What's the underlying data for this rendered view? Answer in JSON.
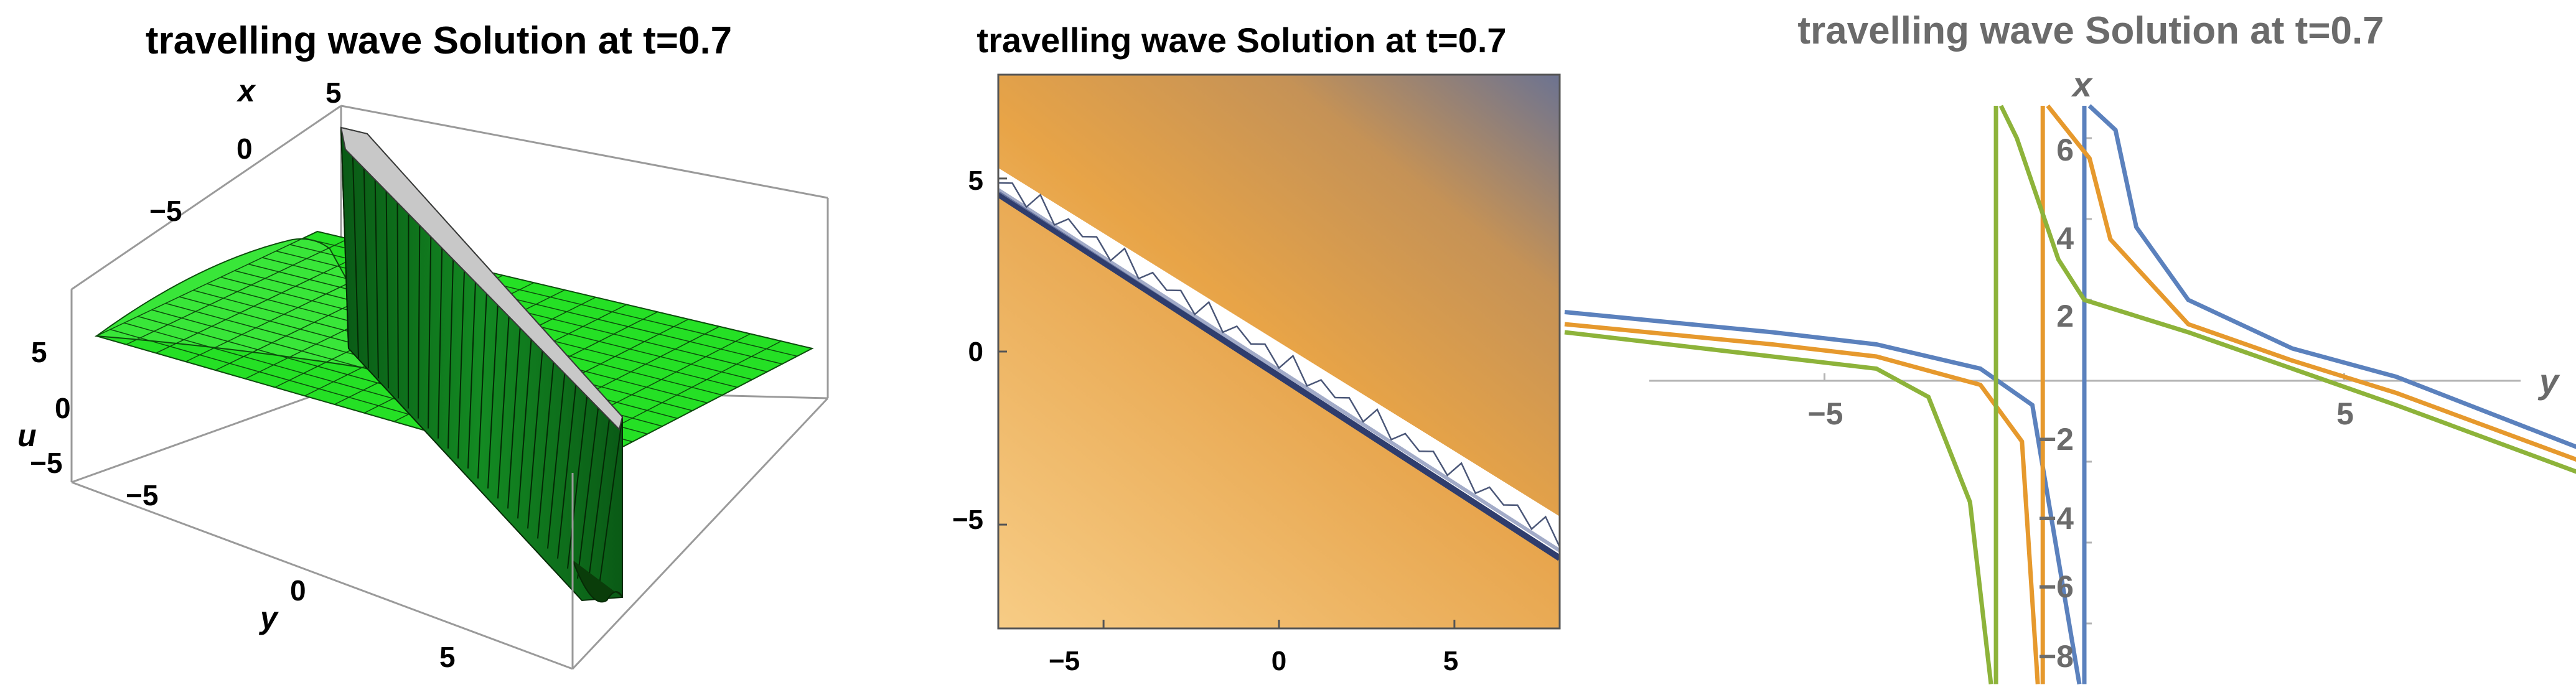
{
  "chart_data": [
    {
      "type": "surface3d",
      "title": "travelling wave Solution at t=0.7",
      "axis_labels": {
        "x": "x",
        "y": "y",
        "z": "u"
      },
      "x_ticks": [
        "5",
        "0",
        "−5"
      ],
      "y_ticks": [
        "−5",
        "0",
        "5"
      ],
      "z_ticks": [
        "5",
        "0",
        "−5"
      ],
      "x_range": [
        -8,
        8
      ],
      "y_range": [
        -8,
        8
      ],
      "z_range": [
        -6,
        8
      ],
      "surface_color": "#1fe01f",
      "wall_color": "#0e7a1e",
      "description_values": {
        "plateau_level": 4,
        "front_line": "x + y ≈ 0"
      }
    },
    {
      "type": "heatmap",
      "title": "travelling wave Solution at t=0.7",
      "x_ticks": [
        "−5",
        "0",
        "5"
      ],
      "y_ticks": [
        "5",
        "0",
        "−5"
      ],
      "xlim": [
        -8,
        8
      ],
      "ylim": [
        -8,
        8
      ],
      "colors": {
        "light": "#f5c677",
        "mid": "#e7a548",
        "dark": "#6b7291",
        "front": "#2f3d6d"
      }
    },
    {
      "type": "line",
      "title": "travelling wave Solution at t=0.7",
      "xlabel": "y",
      "ylabel": "x",
      "xlim": [
        -10,
        10
      ],
      "ylim": [
        -8,
        7
      ],
      "x_ticks": [
        "−5",
        "5"
      ],
      "y_ticks": [
        "6",
        "4",
        "2",
        "−2",
        "−4",
        "−6",
        "−8"
      ],
      "series": [
        {
          "color": "#5b81bd",
          "pole": 0,
          "x": [
            -10,
            -6,
            -4,
            -2,
            -1,
            0.6,
            1,
            2,
            4,
            6,
            10
          ],
          "y": [
            1.7,
            1.2,
            0.9,
            0.3,
            -0.6,
            6.2,
            3.8,
            2.0,
            0.8,
            0.1,
            -1.9
          ]
        },
        {
          "color": "#e6992d",
          "pole": -0.8,
          "x": [
            -10,
            -6,
            -4,
            -2,
            -1.2,
            0.1,
            0.5,
            2,
            4,
            6,
            10
          ],
          "y": [
            1.4,
            0.9,
            0.6,
            -0.1,
            -1.5,
            5.5,
            3.5,
            1.4,
            0.5,
            -0.3,
            -2.2
          ]
        },
        {
          "color": "#8db33a",
          "pole": -1.7,
          "x": [
            -10,
            -6,
            -4,
            -3,
            -2.2,
            -1.3,
            -0.5,
            0,
            2,
            6,
            10
          ],
          "y": [
            1.2,
            0.6,
            0.3,
            -0.4,
            -3.0,
            6.0,
            3.0,
            2.0,
            1.2,
            -0.6,
            -2.5
          ]
        }
      ]
    }
  ]
}
